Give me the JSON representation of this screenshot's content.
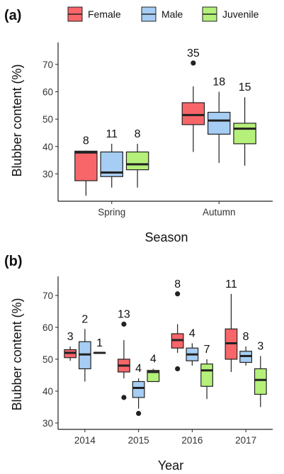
{
  "colors": {
    "female": "#F8666A",
    "male": "#A6CDF3",
    "juvenile": "#B5F07A",
    "line": "#222222"
  },
  "legend": [
    "Female",
    "Male",
    "Juvenile"
  ],
  "chart_data": [
    {
      "type": "box",
      "panel_label": "(a)",
      "xlabel": "Season",
      "ylabel": "Blubber content (%)",
      "ylim": [
        20,
        78
      ],
      "yticks": [
        30,
        40,
        50,
        60,
        70
      ],
      "categories": [
        "Spring",
        "Autumn"
      ],
      "series": [
        {
          "name": "Female",
          "boxes": [
            {
              "min": 22,
              "q1": 27.5,
              "median": 37.8,
              "q3": 38.3,
              "max": 38.5,
              "outliers": [],
              "n": "8"
            },
            {
              "min": 38,
              "q1": 48,
              "median": 51.5,
              "q3": 56,
              "max": 62,
              "outliers": [
                70.5
              ],
              "n": "35"
            }
          ]
        },
        {
          "name": "Male",
          "boxes": [
            {
              "min": 25,
              "q1": 29,
              "median": 30.5,
              "q3": 38,
              "max": 41,
              "outliers": [],
              "n": "11"
            },
            {
              "min": 34,
              "q1": 44.5,
              "median": 49.5,
              "q3": 52.5,
              "max": 60,
              "outliers": [],
              "n": "18"
            }
          ]
        },
        {
          "name": "Juvenile",
          "boxes": [
            {
              "min": 25,
              "q1": 31.5,
              "median": 33.5,
              "q3": 38,
              "max": 41,
              "outliers": [],
              "n": "8"
            },
            {
              "min": 33,
              "q1": 41,
              "median": 46.5,
              "q3": 48.5,
              "max": 58,
              "outliers": [],
              "n": "15"
            }
          ]
        }
      ]
    },
    {
      "type": "box",
      "panel_label": "(b)",
      "xlabel": "Year",
      "ylabel": "Blubber content (%)",
      "ylim": [
        28,
        76
      ],
      "yticks": [
        30,
        40,
        50,
        60,
        70
      ],
      "categories": [
        "2014",
        "2015",
        "2016",
        "2017"
      ],
      "series": [
        {
          "name": "Female",
          "boxes": [
            {
              "min": 49.5,
              "q1": 50.5,
              "median": 52,
              "q3": 53,
              "max": 54,
              "outliers": [],
              "n": "3"
            },
            {
              "min": 44,
              "q1": 46,
              "median": 48,
              "q3": 50,
              "max": 56,
              "outliers": [
                61,
                38
              ],
              "n": "13"
            },
            {
              "min": 52,
              "q1": 53.5,
              "median": 56,
              "q3": 58,
              "max": 61,
              "outliers": [
                70.5,
                47
              ],
              "n": "8"
            },
            {
              "min": 46,
              "q1": 50,
              "median": 55,
              "q3": 59.5,
              "max": 70.5,
              "outliers": [],
              "n": "11"
            }
          ]
        },
        {
          "name": "Male",
          "boxes": [
            {
              "min": 43,
              "q1": 47,
              "median": 51.5,
              "q3": 55.5,
              "max": 59.5,
              "outliers": [],
              "n": "2"
            },
            {
              "min": 34.5,
              "q1": 38,
              "median": 41,
              "q3": 43,
              "max": 44,
              "outliers": [
                33
              ],
              "n": "4"
            },
            {
              "min": 48,
              "q1": 49.5,
              "median": 51.5,
              "q3": 53.5,
              "max": 55,
              "outliers": [],
              "n": "4"
            },
            {
              "min": 48,
              "q1": 49,
              "median": 51,
              "q3": 52.5,
              "max": 54,
              "outliers": [],
              "n": "8"
            }
          ]
        },
        {
          "name": "Juvenile",
          "boxes": [
            {
              "min": 52,
              "q1": 52,
              "median": 52,
              "q3": 52,
              "max": 52,
              "outliers": [],
              "n": "1"
            },
            {
              "min": 43,
              "q1": 43,
              "median": 46,
              "q3": 46.5,
              "max": 47,
              "outliers": [],
              "n": "4"
            },
            {
              "min": 37.5,
              "q1": 41.5,
              "median": 46.5,
              "q3": 48.5,
              "max": 50,
              "outliers": [],
              "n": "7"
            },
            {
              "min": 35,
              "q1": 39,
              "median": 43.5,
              "q3": 47,
              "max": 51,
              "outliers": [],
              "n": "3"
            }
          ]
        }
      ]
    }
  ]
}
